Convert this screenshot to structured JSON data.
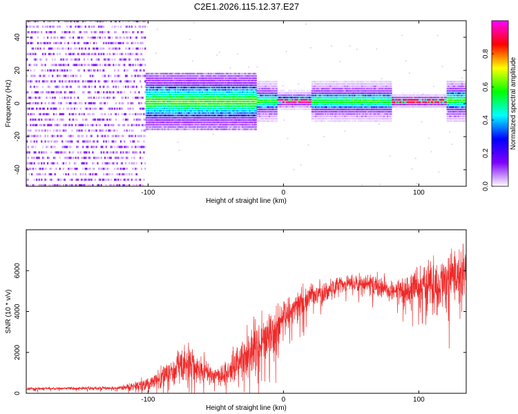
{
  "chart_data": [
    {
      "type": "heatmap",
      "title": "C2E1.2026.115.12.37.E27",
      "xlabel": "Height of straight line (km)",
      "ylabel": "Frequency (Hz)",
      "xlim": [
        -190,
        135
      ],
      "ylim": [
        -50,
        50
      ],
      "x_ticks": [
        {
          "value": -100,
          "label": "-100"
        },
        {
          "value": 0,
          "label": "0"
        },
        {
          "value": 100,
          "label": "100"
        }
      ],
      "y_ticks": [
        {
          "value": -40,
          "label": "-40"
        },
        {
          "value": -20,
          "label": "-20"
        },
        {
          "value": 0,
          "label": "0"
        },
        {
          "value": 20,
          "label": "20"
        },
        {
          "value": 40,
          "label": "40"
        }
      ],
      "colorbar": {
        "label": "Normalized spectral amplitude",
        "range": [
          0.0,
          1.0
        ],
        "ticks": [
          {
            "value": 0.0,
            "label": "0.0"
          },
          {
            "value": 0.2,
            "label": "0.2"
          },
          {
            "value": 0.4,
            "label": "0.4"
          },
          {
            "value": 0.6,
            "label": "0.6"
          },
          {
            "value": 0.8,
            "label": "0.8"
          }
        ],
        "colormap": [
          "#ffffff",
          "#7f00ff",
          "#0000ff",
          "#00ffff",
          "#00ff00",
          "#ffff00",
          "#ff0000",
          "#ff00ff"
        ]
      },
      "regions": [
        {
          "x_range": [
            -190,
            -102
          ],
          "freq_band": [
            -50,
            50
          ],
          "amplitude": 0.1,
          "description": "diffuse noise"
        },
        {
          "x_range": [
            -110,
            -20
          ],
          "freq_band": [
            -8,
            10
          ],
          "amplitude": 0.35
        },
        {
          "x_range": [
            -20,
            80
          ],
          "freq_band": [
            -3,
            5
          ],
          "amplitude": 0.5
        },
        {
          "x_range": [
            -5,
            20
          ],
          "freq_band": [
            0,
            3
          ],
          "amplitude": 0.9
        },
        {
          "x_range": [
            80,
            135
          ],
          "freq_band": [
            -3,
            6
          ],
          "amplitude": 0.45
        },
        {
          "x_range": [
            80,
            120
          ],
          "freq_band": [
            0,
            2
          ],
          "amplitude": 0.85
        }
      ]
    },
    {
      "type": "line",
      "xlabel": "Height of straight line (km)",
      "ylabel": "SNR (10 * v/v)",
      "xlim": [
        -190,
        135
      ],
      "ylim": [
        0,
        8000
      ],
      "x_ticks": [
        {
          "value": -100,
          "label": "-100"
        },
        {
          "value": 0,
          "label": "0"
        },
        {
          "value": 100,
          "label": "100"
        }
      ],
      "y_ticks": [
        {
          "value": 0,
          "label": "0"
        },
        {
          "value": 2000,
          "label": "2000"
        },
        {
          "value": 4000,
          "label": "4000"
        },
        {
          "value": 6000,
          "label": "6000"
        }
      ],
      "series": [
        {
          "name": "SNR",
          "color": "#ee2a2a",
          "x": [
            -190,
            -150,
            -120,
            -100,
            -80,
            -72,
            -60,
            -50,
            -40,
            -30,
            -20,
            -10,
            0,
            10,
            20,
            30,
            40,
            50,
            60,
            70,
            80,
            90,
            100,
            110,
            120,
            130,
            135
          ],
          "mean": [
            220,
            240,
            260,
            450,
            1100,
            1500,
            1100,
            850,
            1100,
            1700,
            2300,
            2800,
            3600,
            4300,
            4700,
            5000,
            5300,
            5400,
            5400,
            5200,
            5000,
            5000,
            5200,
            5300,
            5400,
            5600,
            5700
          ],
          "spread": [
            90,
            100,
            120,
            500,
            900,
            1200,
            900,
            600,
            800,
            1300,
            1700,
            1800,
            1200,
            1000,
            900,
            700,
            600,
            500,
            600,
            800,
            700,
            1000,
            1400,
            1700,
            1900,
            2000,
            2000
          ]
        }
      ]
    }
  ]
}
